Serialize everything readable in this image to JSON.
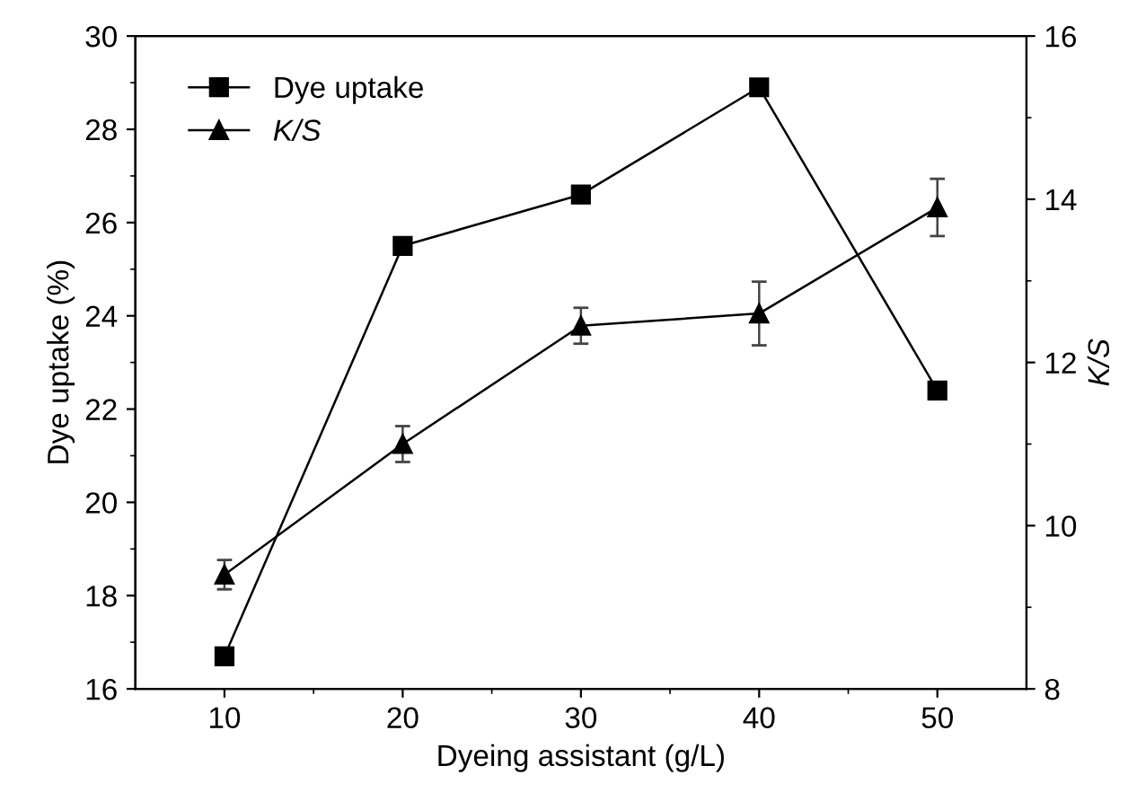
{
  "chart_data": {
    "type": "line",
    "xlabel": "Dyeing assistant (g/L)",
    "ylabel": "Dye uptake (%)",
    "y2label": "K/S",
    "x": [
      10,
      20,
      30,
      40,
      50
    ],
    "series": [
      {
        "name": "Dye uptake",
        "color": "#000000",
        "marker": "square",
        "values": [
          16.7,
          25.5,
          26.6,
          28.9,
          22.4
        ]
      },
      {
        "name": "K/S",
        "color": "#000000",
        "marker": "triangle",
        "axis": "y2",
        "values": [
          9.4,
          11.0,
          12.45,
          12.6,
          13.9
        ],
        "errors": [
          0.18,
          0.22,
          0.22,
          0.39,
          0.35
        ]
      }
    ],
    "xlim": [
      5,
      55
    ],
    "xticks": [
      10,
      {
        "value": 15,
        "label": null
      },
      20,
      {
        "value": 25,
        "label": null
      },
      30,
      {
        "value": 35,
        "label": null
      },
      40,
      {
        "value": 45,
        "label": null
      },
      50
    ],
    "ylim": [
      16,
      30
    ],
    "yticks": [
      16,
      {
        "value": 17,
        "label": null
      },
      18,
      {
        "value": 19,
        "label": null
      },
      20,
      {
        "value": 21,
        "label": null
      },
      22,
      {
        "value": 23,
        "label": null
      },
      24,
      {
        "value": 25,
        "label": null
      },
      26,
      {
        "value": 27,
        "label": null
      },
      28,
      {
        "value": 29,
        "label": null
      },
      30
    ],
    "y2lim": [
      8,
      16
    ],
    "y2ticks": [
      8,
      {
        "value": 9,
        "label": null
      },
      10,
      {
        "value": 11,
        "label": null
      },
      12,
      {
        "value": 13,
        "label": null
      },
      14,
      {
        "value": 15,
        "label": null
      },
      16
    ],
    "legend": "top left",
    "grid": false,
    "line_style": "solid"
  }
}
